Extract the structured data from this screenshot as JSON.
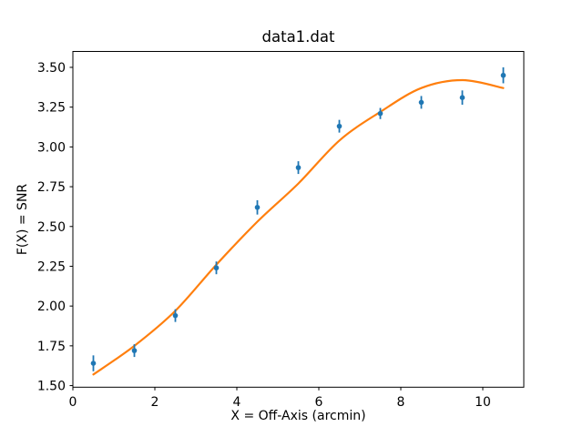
{
  "chart_data": {
    "type": "scatter",
    "title": "data1.dat",
    "xlabel": "X = Off-Axis (arcmin)",
    "ylabel": "F(X) = SNR",
    "xlim": [
      0,
      11
    ],
    "ylim": [
      1.49,
      3.6
    ],
    "x_ticks": [
      0,
      2,
      4,
      6,
      8,
      10
    ],
    "y_ticks": [
      1.5,
      1.75,
      2.0,
      2.25,
      2.5,
      2.75,
      3.0,
      3.25,
      3.5
    ],
    "grid": false,
    "legend": "none",
    "background_color": "#ffffff",
    "spine_color": "#000000",
    "series": [
      {
        "name": "data-points-with-errorbars",
        "type": "scatter-errorbar",
        "color": "#1f77b4",
        "x": [
          0.5,
          1.5,
          2.5,
          3.5,
          4.5,
          5.5,
          6.5,
          7.5,
          8.5,
          9.5,
          10.5
        ],
        "y": [
          1.64,
          1.72,
          1.94,
          2.24,
          2.62,
          2.87,
          3.13,
          3.21,
          3.28,
          3.31,
          3.45
        ],
        "yerr": [
          0.05,
          0.04,
          0.04,
          0.04,
          0.045,
          0.04,
          0.04,
          0.035,
          0.04,
          0.045,
          0.05
        ]
      },
      {
        "name": "model-curve",
        "type": "line",
        "color": "#ff7f0e",
        "x": [
          0.5,
          1.5,
          2.5,
          3.5,
          4.5,
          5.5,
          6.5,
          7.5,
          8.5,
          9.5,
          10.5
        ],
        "y": [
          1.57,
          1.75,
          1.97,
          2.26,
          2.53,
          2.77,
          3.04,
          3.22,
          3.37,
          3.42,
          3.37
        ]
      }
    ]
  }
}
